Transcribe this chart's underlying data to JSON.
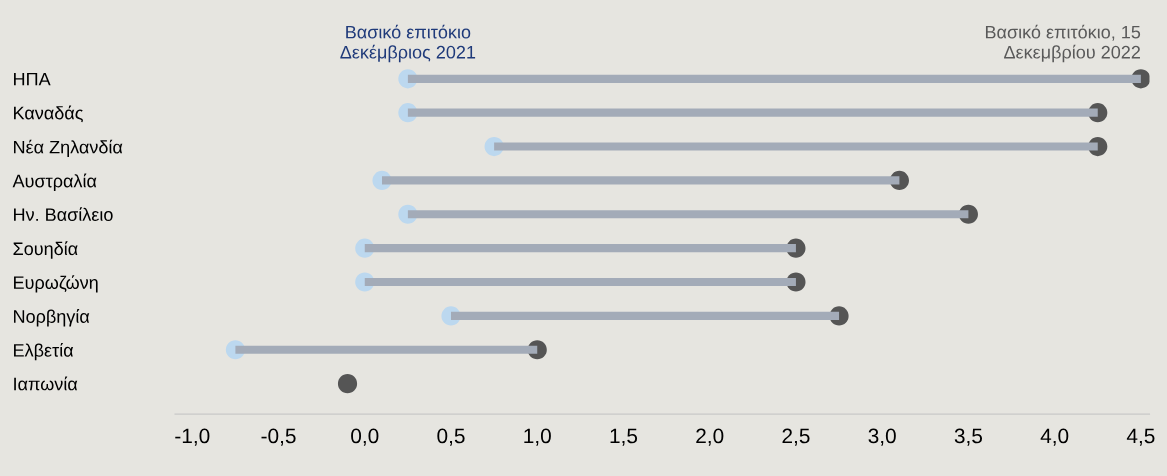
{
  "chart_data": {
    "type": "bar",
    "orientation": "horizontal",
    "categories": [
      "ΗΠΑ",
      "Καναδάς",
      "Νέα Ζηλανδία",
      "Αυστραλία",
      "Ην. Βασίλειο",
      "Σουηδία",
      "Ευρωζώνη",
      "Νορβηγία",
      "Ελβετία",
      "Ιαπωνία"
    ],
    "series": [
      {
        "color": "#a3abb8",
        "base": [
          0.25,
          0.25,
          0.75,
          0.1,
          0.25,
          0.0,
          0.0,
          0.5,
          -0.75,
          null
        ],
        "values": [
          4.25,
          4.0,
          3.5,
          3.0,
          3.25,
          2.5,
          2.5,
          2.25,
          1.75,
          null
        ]
      },
      {
        "type": "scatter",
        "color": "#bcd8ef",
        "values": [
          0.25,
          0.25,
          0.75,
          0.1,
          0.25,
          0.0,
          0.0,
          0.5,
          -0.75,
          null
        ]
      },
      {
        "type": "scatter",
        "color": "#555555",
        "values": [
          4.5,
          4.25,
          4.25,
          3.1,
          3.5,
          2.5,
          2.5,
          2.75,
          1.0,
          -0.1
        ]
      }
    ],
    "marker": "circle",
    "xlim": [
      -1.1,
      4.55
    ],
    "xticks": [
      {
        "value": -1.0,
        "label": "-1,0"
      },
      {
        "value": -0.5,
        "label": "-0,5"
      },
      {
        "value": 0.0,
        "label": "0,0"
      },
      {
        "value": 0.5,
        "label": "0,5"
      },
      {
        "value": 1.0,
        "label": "1,0"
      },
      {
        "value": 1.5,
        "label": "1,5"
      },
      {
        "value": 2.0,
        "label": "2,0"
      },
      {
        "value": 2.5,
        "label": "2,5"
      },
      {
        "value": 3.0,
        "label": "3,0"
      },
      {
        "value": 3.5,
        "label": "3,5"
      },
      {
        "value": 4.0,
        "label": "4,0"
      },
      {
        "value": 4.5,
        "label": "4,5"
      }
    ],
    "grid": false,
    "annotations": [
      {
        "text": "Βασικό επιτόκιο\nΔεκέμβριος 2021",
        "x": 0.25,
        "y": "ΗΠΑ"
      },
      {
        "text": "Βασικό επιτόκιο, 15\nΔεκεμβρίου 2022",
        "x": 4.5,
        "y": "ΗΠΑ"
      }
    ]
  }
}
